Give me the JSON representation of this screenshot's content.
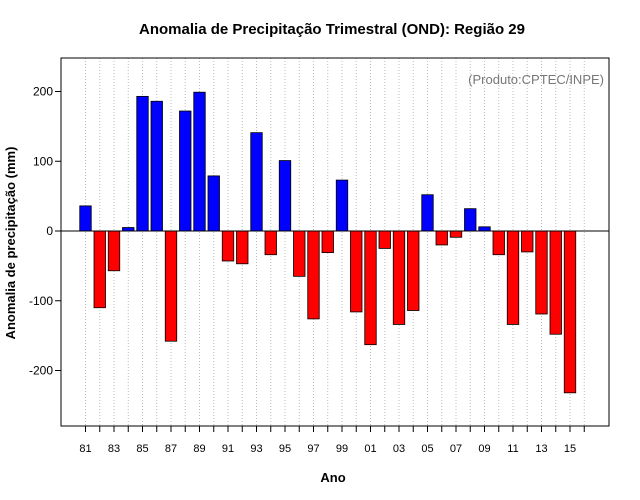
{
  "chart_data": {
    "type": "bar",
    "title": "Anomalia de Precipitação Trimestral (OND): Região 29",
    "xlabel": "Ano",
    "ylabel": "Anomalia de precipitação (mm)",
    "credit": "(Produto:CPTEC/INPE)",
    "ylim": [
      -280,
      245
    ],
    "yticks": [
      -200,
      -100,
      0,
      100,
      200
    ],
    "grid": true,
    "categories": [
      "81",
      "82",
      "83",
      "84",
      "85",
      "86",
      "87",
      "88",
      "89",
      "90",
      "91",
      "92",
      "93",
      "94",
      "95",
      "96",
      "97",
      "98",
      "99",
      "00",
      "01",
      "02",
      "03",
      "04",
      "05",
      "06",
      "07",
      "08",
      "09",
      "10",
      "11",
      "12",
      "13",
      "14",
      "15"
    ],
    "tick_labels": [
      "81",
      "83",
      "85",
      "87",
      "89",
      "91",
      "93",
      "95",
      "97",
      "99",
      "01",
      "03",
      "05",
      "07",
      "09",
      "11",
      "13",
      "15"
    ],
    "values": [
      36,
      -110,
      -57,
      5,
      193,
      186,
      -158,
      172,
      199,
      79,
      -43,
      -47,
      141,
      -34,
      101,
      -65,
      -126,
      -31,
      73,
      -116,
      -163,
      -25,
      -134,
      -114,
      52,
      -20,
      -9,
      32,
      6,
      -34,
      -134,
      -30,
      -119,
      -148,
      -232
    ],
    "positive_color": "#0000ff",
    "negative_color": "#ff0000"
  }
}
